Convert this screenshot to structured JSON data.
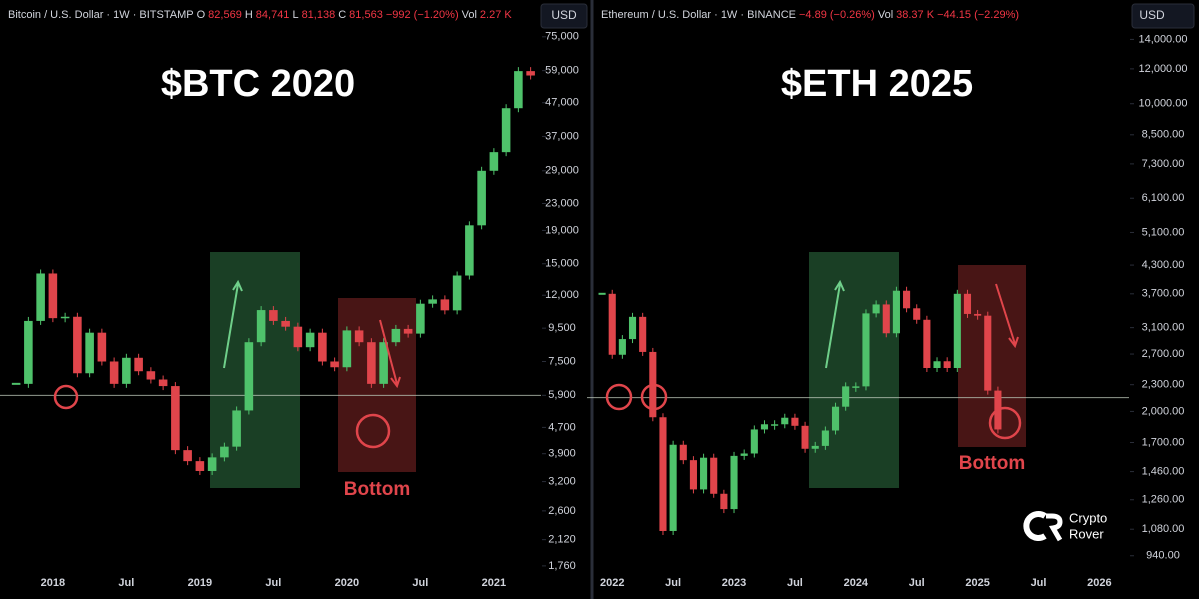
{
  "chart_data": [
    {
      "type": "candlestick",
      "title": "$BTC 2020",
      "currency": "USD",
      "annotation": "Bottom",
      "info": [
        {
          "text": "Bitcoin / U.S. Dollar · 1W · BITSTAMP",
          "color": "#d1d4dc"
        },
        {
          "text": "O",
          "color": "#d1d4dc"
        },
        {
          "text": "82,569",
          "color": "#f23645"
        },
        {
          "text": "H",
          "color": "#d1d4dc"
        },
        {
          "text": "84,741",
          "color": "#f23645"
        },
        {
          "text": "L",
          "color": "#d1d4dc"
        },
        {
          "text": "81,138",
          "color": "#f23645"
        },
        {
          "text": "C",
          "color": "#d1d4dc"
        },
        {
          "text": "81,563",
          "color": "#f23645"
        },
        {
          "text": "−992 (−1.20%)",
          "color": "#f23645"
        },
        {
          "text": "Vol",
          "color": "#d1d4dc"
        },
        {
          "text": "2.27 K",
          "color": "#f23645"
        }
      ],
      "log_y": true,
      "up_color": "#4fc26b",
      "down_color": "#e0454b",
      "categories": [
        null,
        null,
        null,
        "2018",
        null,
        null,
        null,
        null,
        null,
        "Jul",
        null,
        null,
        null,
        null,
        null,
        "2019",
        null,
        null,
        null,
        null,
        null,
        "Jul",
        null,
        null,
        null,
        null,
        null,
        "2020",
        null,
        null,
        null,
        null,
        null,
        "Jul",
        null,
        null,
        null,
        null,
        null,
        "2021",
        null,
        null,
        null
      ],
      "values": [
        6400,
        10000,
        14000,
        10200,
        10300,
        6900,
        9200,
        7500,
        6400,
        7700,
        7000,
        6600,
        6300,
        4000,
        3700,
        3450,
        3800,
        4100,
        5300,
        8600,
        10800,
        10000,
        9600,
        8300,
        9200,
        7500,
        7200,
        9350,
        8600,
        6400,
        8600,
        9450,
        9140,
        11300,
        11650,
        10780,
        13800,
        19700,
        29000,
        33100,
        45200,
        58800,
        57000
      ],
      "support_level": 5900,
      "ylim": [
        1650,
        92000
      ],
      "yticks": [
        {
          "value": 75000,
          "label": "75,000"
        },
        {
          "value": 59000,
          "label": "59,000"
        },
        {
          "value": 47000,
          "label": "47,000"
        },
        {
          "value": 37000,
          "label": "37,000"
        },
        {
          "value": 29000,
          "label": "29,000"
        },
        {
          "value": 23000,
          "label": "23,000"
        },
        {
          "value": 19000,
          "label": "19,000"
        },
        {
          "value": 15000,
          "label": "15,000"
        },
        {
          "value": 12000,
          "label": "12,000"
        },
        {
          "value": 9500,
          "label": "9,500"
        },
        {
          "value": 7500,
          "label": "7,500"
        },
        {
          "value": 5900,
          "label": "5,900"
        },
        {
          "value": 4700,
          "label": "4,700"
        },
        {
          "value": 3900,
          "label": "3,900"
        },
        {
          "value": 3200,
          "label": "3,200"
        },
        {
          "value": 2600,
          "label": "2,600"
        },
        {
          "value": 2120,
          "label": "2,120"
        },
        {
          "value": 1760,
          "label": "1,760"
        }
      ]
    },
    {
      "type": "candlestick",
      "title": "$ETH 2025",
      "currency": "USD",
      "annotation": "Bottom",
      "info": [
        {
          "text": "Ethereum / U.S. Dollar · 1W · BINANCE",
          "color": "#d1d4dc"
        },
        {
          "text": "−4.89 (−0.26%)",
          "color": "#f23645"
        },
        {
          "text": "Vol",
          "color": "#d1d4dc"
        },
        {
          "text": "38.37 K",
          "color": "#f23645"
        },
        {
          "text": "−44.15 (−2.29%)",
          "color": "#f23645"
        }
      ],
      "log_y": true,
      "up_color": "#4fc26b",
      "down_color": "#e0454b",
      "categories": [
        null,
        "2022",
        null,
        null,
        null,
        null,
        null,
        "Jul",
        null,
        null,
        null,
        null,
        null,
        "2023",
        null,
        null,
        null,
        null,
        null,
        "Jul",
        null,
        null,
        null,
        null,
        null,
        "2024",
        null,
        null,
        null,
        null,
        null,
        "Jul",
        null,
        null,
        null,
        null,
        null,
        "2025",
        null,
        null,
        null,
        null,
        null,
        "Jul",
        null,
        null,
        null,
        null,
        null,
        "2026"
      ],
      "values": [
        3700,
        2690,
        2920,
        3280,
        2730,
        1940,
        1070,
        1680,
        1550,
        1330,
        1570,
        1300,
        1200,
        1585,
        1605,
        1820,
        1870,
        1870,
        1935,
        1855,
        1645,
        1670,
        1810,
        2050,
        2280,
        2280,
        3340,
        3500,
        3010,
        3760,
        3430,
        3230,
        2510,
        2600,
        2510,
        3700,
        3330,
        3300,
        2230,
        1820,
        null,
        null,
        null,
        null,
        null,
        null,
        null,
        null,
        null,
        null
      ],
      "support_level": 2150,
      "ylim": [
        850,
        16500
      ],
      "yticks": [
        {
          "value": 14000,
          "label": "14,000.00"
        },
        {
          "value": 12000,
          "label": "12,000.00"
        },
        {
          "value": 10000,
          "label": "10,000.00"
        },
        {
          "value": 8500,
          "label": "8,500.00"
        },
        {
          "value": 7300,
          "label": "7,300.00"
        },
        {
          "value": 6100,
          "label": "6,100.00"
        },
        {
          "value": 5100,
          "label": "5,100.00"
        },
        {
          "value": 4300,
          "label": "4,300.00"
        },
        {
          "value": 3700,
          "label": "3,700.00"
        },
        {
          "value": 3100,
          "label": "3,100.00"
        },
        {
          "value": 2700,
          "label": "2,700.00"
        },
        {
          "value": 2300,
          "label": "2,300.00"
        },
        {
          "value": 2000,
          "label": "2,000.00"
        },
        {
          "value": 1700,
          "label": "1,700.00"
        },
        {
          "value": 1460,
          "label": "1,460.00"
        },
        {
          "value": 1260,
          "label": "1,260.00"
        },
        {
          "value": 1080,
          "label": "1,080.00"
        },
        {
          "value": 940,
          "label": "940.00"
        }
      ]
    }
  ],
  "watermark": [
    "Crypto",
    "Rover"
  ]
}
